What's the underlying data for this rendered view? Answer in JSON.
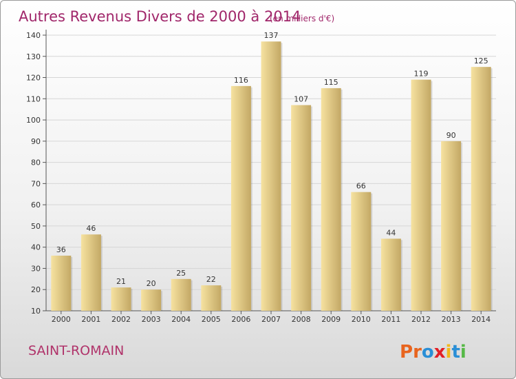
{
  "header": {
    "title": "Autres Revenus Divers de 2000 à 2014",
    "unit": "(en milliers d'€)"
  },
  "footer": {
    "commune": "SAINT-ROMAIN",
    "brand_letters": [
      {
        "ch": "P",
        "color": "#e8641e"
      },
      {
        "ch": "r",
        "color": "#e8641e"
      },
      {
        "ch": "o",
        "color": "#2a8fd6"
      },
      {
        "ch": "x",
        "color": "#e21f26"
      },
      {
        "ch": "i",
        "color": "#f2b81a"
      },
      {
        "ch": "t",
        "color": "#2a8fd6"
      },
      {
        "ch": "i",
        "color": "#56b947"
      }
    ]
  },
  "colors": {
    "bar_light": "#f6e2a0",
    "bar_dark": "#c3a865",
    "title": "#a0266a"
  },
  "chart_data": {
    "type": "bar",
    "title": "Autres Revenus Divers de 2000 à 2014",
    "unit": "(en milliers d'€)",
    "categories": [
      "2000",
      "2001",
      "2002",
      "2003",
      "2004",
      "2005",
      "2006",
      "2007",
      "2008",
      "2009",
      "2010",
      "2011",
      "2012",
      "2013",
      "2014"
    ],
    "values": [
      36,
      46,
      21,
      20,
      25,
      22,
      116,
      137,
      107,
      115,
      66,
      44,
      119,
      90,
      125
    ],
    "ylim": [
      10,
      140
    ],
    "yticks": [
      10,
      20,
      30,
      40,
      50,
      60,
      70,
      80,
      90,
      100,
      110,
      120,
      130,
      140
    ],
    "grid": true,
    "xlabel": "",
    "ylabel": ""
  }
}
